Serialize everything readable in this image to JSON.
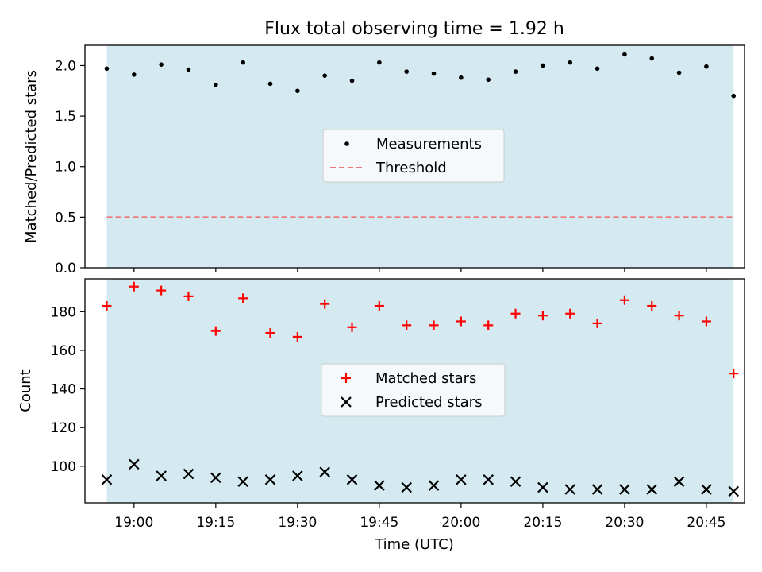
{
  "chart_data": [
    {
      "type": "scatter",
      "title": "Flux total observing time = 1.92 h",
      "ylabel": "Matched/Predicted stars",
      "xlabel": "",
      "ylim": [
        0.0,
        2.2
      ],
      "yticks": [
        0.0,
        0.5,
        1.0,
        1.5,
        2.0
      ],
      "ytick_labels": [
        "0.0",
        "0.5",
        "1.0",
        "1.5",
        "2.0"
      ],
      "legend_position": "center",
      "shaded_color": "#d4eaf0",
      "series": [
        {
          "name": "Measurements",
          "marker": "dot",
          "color": "#000000",
          "values": [
            1.97,
            1.91,
            2.01,
            1.96,
            1.81,
            2.03,
            1.82,
            1.75,
            1.9,
            1.85,
            2.03,
            1.94,
            1.92,
            1.88,
            1.86,
            1.94,
            2.0,
            2.03,
            1.97,
            2.11,
            2.07,
            1.93,
            1.99,
            1.7
          ]
        },
        {
          "name": "Threshold",
          "marker": "dashed-line",
          "color": "#ef7676",
          "y": 0.5
        }
      ]
    },
    {
      "type": "scatter",
      "title": "",
      "ylabel": "Count",
      "xlabel": "Time (UTC)",
      "ylim": [
        81,
        197
      ],
      "yticks": [
        100,
        120,
        140,
        160,
        180
      ],
      "ytick_labels": [
        "100",
        "120",
        "140",
        "160",
        "180"
      ],
      "legend_position": "center",
      "shaded_color": "#d4eaf0",
      "series": [
        {
          "name": "Matched stars",
          "marker": "plus",
          "color": "#ff0000",
          "values": [
            183,
            193,
            191,
            188,
            170,
            187,
            169,
            167,
            184,
            172,
            183,
            173,
            173,
            175,
            173,
            179,
            178,
            179,
            174,
            186,
            183,
            178,
            175,
            148
          ]
        },
        {
          "name": "Predicted stars",
          "marker": "x",
          "color": "#000000",
          "values": [
            93,
            101,
            95,
            96,
            94,
            92,
            93,
            95,
            97,
            93,
            90,
            89,
            90,
            93,
            93,
            92,
            89,
            88,
            88,
            88,
            88,
            92,
            88,
            87
          ]
        }
      ]
    }
  ],
  "x": [
    "18:55",
    "19:00",
    "19:05",
    "19:10",
    "19:15",
    "19:20",
    "19:25",
    "19:30",
    "19:35",
    "19:40",
    "19:45",
    "19:50",
    "19:55",
    "20:00",
    "20:05",
    "20:10",
    "20:15",
    "20:20",
    "20:25",
    "20:30",
    "20:35",
    "20:40",
    "20:45",
    "20:50"
  ],
  "xlim": [
    "18:51",
    "20:52"
  ],
  "xticks": [
    "19:00",
    "19:15",
    "19:30",
    "19:45",
    "20:00",
    "20:15",
    "20:30",
    "20:45"
  ],
  "shaded_range": [
    "18:55",
    "20:50"
  ]
}
